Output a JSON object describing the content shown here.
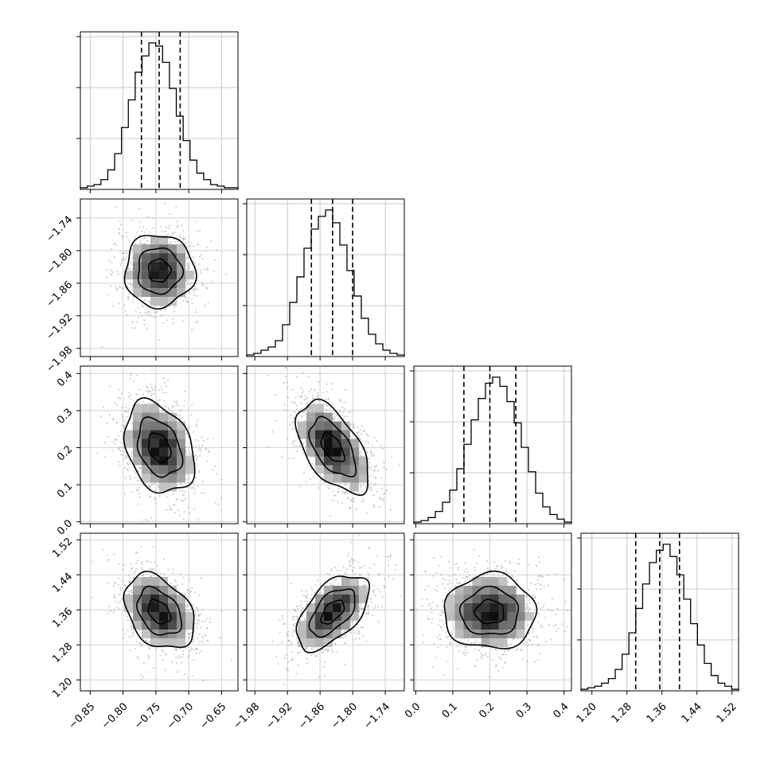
{
  "chart_data": {
    "type": "corner",
    "parameters": [
      {
        "range": [
          -0.865,
          -0.625
        ],
        "ticks": [
          -0.85,
          -0.8,
          -0.75,
          -0.7,
          -0.65
        ],
        "tick_labels": [
          "−0.85",
          "−0.80",
          "−0.75",
          "−0.70",
          "−0.65"
        ],
        "hist_counts": [
          1,
          2,
          3,
          6,
          12,
          22,
          38,
          55,
          72,
          82,
          90,
          88,
          78,
          62,
          45,
          30,
          18,
          10,
          6,
          3,
          2,
          1,
          1
        ],
        "quantiles": [
          -0.772,
          -0.745,
          -0.713
        ],
        "mean": -0.745,
        "sd": 0.028
      },
      {
        "range": [
          -1.995,
          -1.705
        ],
        "ticks": [
          -1.98,
          -1.92,
          -1.86,
          -1.8,
          -1.74
        ],
        "tick_labels": [
          "−1.98",
          "−1.92",
          "−1.86",
          "−1.80",
          "−1.74"
        ],
        "hist_counts": [
          1,
          2,
          4,
          6,
          10,
          20,
          34,
          50,
          68,
          80,
          88,
          92,
          84,
          70,
          54,
          38,
          24,
          14,
          8,
          4,
          2,
          1
        ],
        "quantiles": [
          -1.876,
          -1.837,
          -1.8
        ],
        "mean": -1.837,
        "sd": 0.035
      },
      {
        "range": [
          -0.005,
          0.42
        ],
        "ticks": [
          0.0,
          0.1,
          0.2,
          0.3,
          0.4
        ],
        "tick_labels": [
          "0.0",
          "0.1",
          "0.2",
          "0.3",
          "0.4"
        ],
        "hist_counts": [
          1,
          2,
          4,
          8,
          14,
          22,
          36,
          52,
          68,
          82,
          92,
          96,
          90,
          80,
          66,
          50,
          34,
          20,
          11,
          6,
          3,
          1
        ],
        "quantiles": [
          0.13,
          0.2,
          0.27
        ],
        "mean": 0.2,
        "sd": 0.065
      },
      {
        "range": [
          1.175,
          1.535
        ],
        "ticks": [
          1.2,
          1.28,
          1.36,
          1.44,
          1.52
        ],
        "tick_labels": [
          "1.20",
          "1.28",
          "1.36",
          "1.44",
          "1.52"
        ],
        "hist_counts": [
          1,
          2,
          3,
          5,
          8,
          14,
          24,
          38,
          54,
          70,
          84,
          92,
          96,
          88,
          76,
          60,
          44,
          30,
          18,
          10,
          5,
          3,
          1
        ],
        "quantiles": [
          1.3,
          1.355,
          1.4
        ],
        "mean": 1.355,
        "sd": 0.045
      }
    ],
    "correlations": {
      "1-0": 0.0,
      "2-0": -0.3,
      "2-1": -0.55,
      "3-0": -0.35,
      "3-1": 0.55,
      "3-2": 0.0
    },
    "grid": true,
    "contour_levels": 3,
    "title": "",
    "xlabel": "",
    "ylabel": ""
  }
}
